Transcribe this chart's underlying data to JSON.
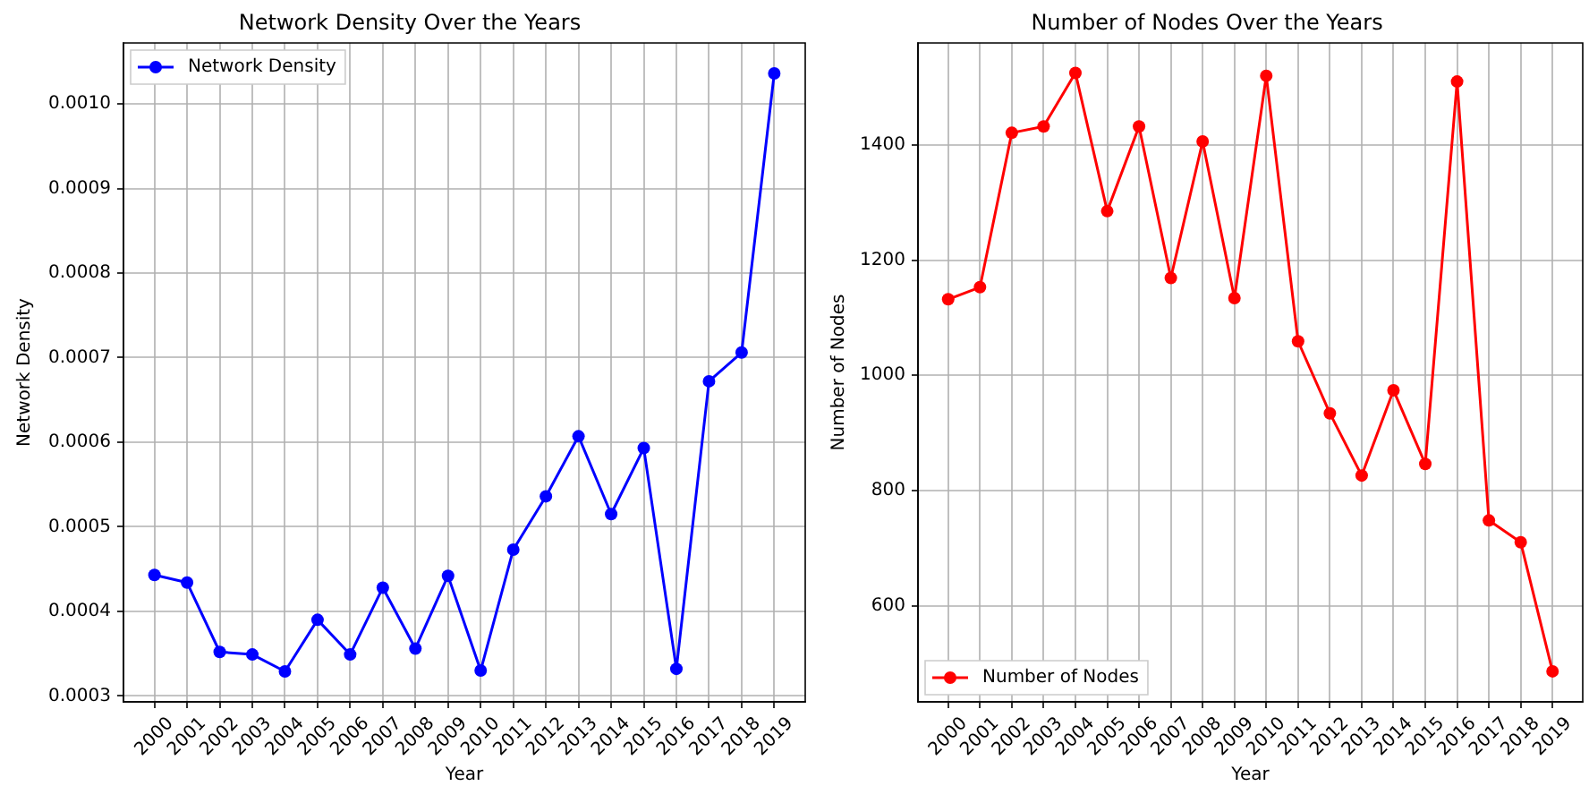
{
  "chart_data": [
    {
      "type": "line",
      "title": "Network Density Over the Years",
      "xlabel": "Year",
      "ylabel": "Network Density",
      "categories": [
        "2000",
        "2001",
        "2002",
        "2003",
        "2004",
        "2005",
        "2006",
        "2007",
        "2008",
        "2009",
        "2010",
        "2011",
        "2012",
        "2013",
        "2014",
        "2015",
        "2016",
        "2017",
        "2018",
        "2019"
      ],
      "series": [
        {
          "name": "Network Density",
          "color": "#0000ff",
          "values": [
            0.000443,
            0.000434,
            0.000352,
            0.000349,
            0.000329,
            0.00039,
            0.000349,
            0.000428,
            0.000356,
            0.000442,
            0.00033,
            0.000473,
            0.000536,
            0.000607,
            0.000515,
            0.000593,
            0.000332,
            0.000672,
            0.000706,
            0.001036
          ]
        }
      ],
      "ylim": [
        0.000293,
        0.001072
      ],
      "yticks": [
        0.0003,
        0.0004,
        0.0005,
        0.0006,
        0.0007,
        0.0008,
        0.0009,
        {
          "value": 0.001,
          "label": "0.0010"
        }
      ],
      "grid": true,
      "legend": "top left",
      "marker": "circle",
      "line_style": "solid"
    },
    {
      "type": "line",
      "title": "Number of Nodes Over the Years",
      "xlabel": "Year",
      "ylabel": "Number of Nodes",
      "categories": [
        "2000",
        "2001",
        "2002",
        "2003",
        "2004",
        "2005",
        "2006",
        "2007",
        "2008",
        "2009",
        "2010",
        "2011",
        "2012",
        "2013",
        "2014",
        "2015",
        "2016",
        "2017",
        "2018",
        "2019"
      ],
      "series": [
        {
          "name": "Number of Nodes",
          "color": "#ff0000",
          "values": [
            1132,
            1153,
            1421,
            1432,
            1525,
            1285,
            1432,
            1169,
            1406,
            1134,
            1520,
            1059,
            934,
            826,
            974,
            846,
            1510,
            748,
            710,
            486
          ]
        }
      ],
      "ylim": [
        433,
        1577
      ],
      "yticks": [
        600,
        800,
        1000,
        1200,
        1400
      ],
      "grid": true,
      "legend": "bottom left",
      "marker": "circle",
      "line_style": "solid"
    }
  ]
}
